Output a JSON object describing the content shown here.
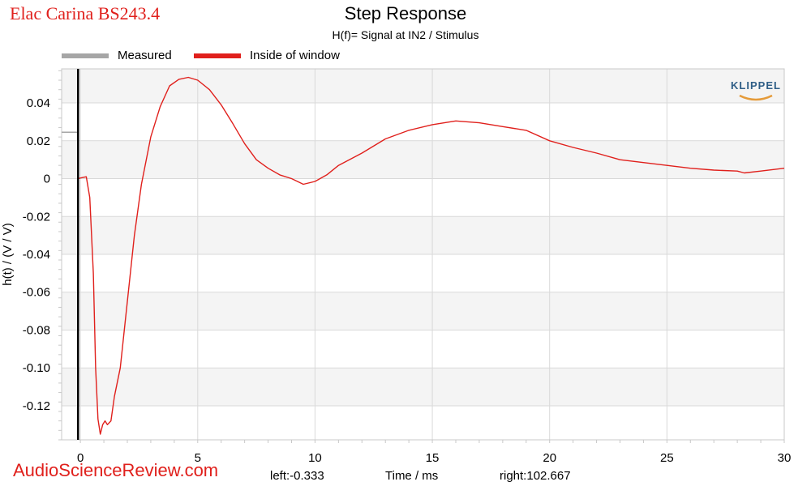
{
  "brand_label": "Elac Carina BS243.4",
  "watermark": "AudioScienceReview.com",
  "logo": "KLIPPEL",
  "colors": {
    "measured": "#a6a6a6",
    "inside_window": "#e0201c",
    "band": "#f4f4f4",
    "grid": "#d9d9d9"
  },
  "chart_data": {
    "type": "line",
    "title": "Step Response",
    "subtitle": "H(f)= Signal at IN2 / Stimulus",
    "xlabel": "Time / ms",
    "ylabel": "h(t) / (V / V)",
    "xlim": [
      -0.8,
      30
    ],
    "ylim": [
      -0.138,
      0.058
    ],
    "grid": true,
    "legend_position": "top-left",
    "x_ticks": [
      0,
      5,
      10,
      15,
      20,
      25,
      30
    ],
    "x_tick_labels": [
      "0",
      "5",
      "10",
      "15",
      "20",
      "25",
      "30"
    ],
    "y_ticks": [
      0.04,
      0.02,
      0,
      -0.02,
      -0.04,
      -0.06,
      -0.08,
      -0.1,
      -0.12
    ],
    "y_tick_labels": [
      "0.04",
      "0.02",
      "0",
      "-0.02",
      "-0.04",
      "-0.06",
      "-0.08",
      "-0.10",
      "-0.12"
    ],
    "window_left_label": "left:-0.333",
    "window_right_label": "right:102.667",
    "window_marker_x": -0.1,
    "series": [
      {
        "name": "Measured",
        "color": "#a6a6a6",
        "points": [
          [
            -0.8,
            0.0245
          ],
          [
            -0.1,
            0.0245
          ]
        ]
      },
      {
        "name": "Inside of window",
        "color": "#e0201c",
        "points": [
          [
            -0.1,
            0.0245
          ],
          [
            -0.1,
            0.0
          ],
          [
            0.05,
            0.0005
          ],
          [
            0.25,
            0.001
          ],
          [
            0.4,
            -0.01
          ],
          [
            0.55,
            -0.05
          ],
          [
            0.65,
            -0.1
          ],
          [
            0.75,
            -0.127
          ],
          [
            0.85,
            -0.135
          ],
          [
            0.95,
            -0.13
          ],
          [
            1.05,
            -0.128
          ],
          [
            1.15,
            -0.13
          ],
          [
            1.3,
            -0.128
          ],
          [
            1.45,
            -0.115
          ],
          [
            1.7,
            -0.1
          ],
          [
            2.0,
            -0.065
          ],
          [
            2.3,
            -0.03
          ],
          [
            2.6,
            -0.003
          ],
          [
            3.0,
            0.022
          ],
          [
            3.4,
            0.038
          ],
          [
            3.8,
            0.049
          ],
          [
            4.2,
            0.0525
          ],
          [
            4.6,
            0.0535
          ],
          [
            5.0,
            0.052
          ],
          [
            5.5,
            0.047
          ],
          [
            6.0,
            0.039
          ],
          [
            6.5,
            0.029
          ],
          [
            7.0,
            0.0185
          ],
          [
            7.5,
            0.01
          ],
          [
            8.0,
            0.0055
          ],
          [
            8.5,
            0.002
          ],
          [
            9.0,
            0.0
          ],
          [
            9.5,
            -0.003
          ],
          [
            10.0,
            -0.0015
          ],
          [
            10.5,
            0.002
          ],
          [
            11.0,
            0.007
          ],
          [
            12.0,
            0.0135
          ],
          [
            13.0,
            0.021
          ],
          [
            14.0,
            0.0255
          ],
          [
            15.0,
            0.0285
          ],
          [
            16.0,
            0.0305
          ],
          [
            17.0,
            0.0295
          ],
          [
            18.0,
            0.0275
          ],
          [
            19.0,
            0.0255
          ],
          [
            20.0,
            0.02
          ],
          [
            21.0,
            0.0165
          ],
          [
            22.0,
            0.0135
          ],
          [
            23.0,
            0.01
          ],
          [
            24.0,
            0.0085
          ],
          [
            25.0,
            0.007
          ],
          [
            26.0,
            0.0055
          ],
          [
            27.0,
            0.0045
          ],
          [
            28.0,
            0.004
          ],
          [
            28.3,
            0.003
          ],
          [
            29.0,
            0.004
          ],
          [
            30.0,
            0.0055
          ]
        ]
      }
    ]
  }
}
